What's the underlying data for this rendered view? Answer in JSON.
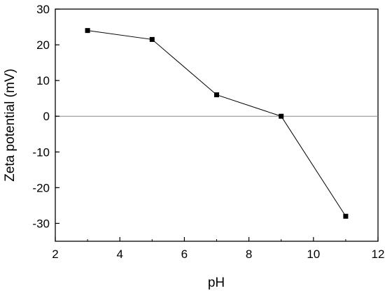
{
  "chart_data": {
    "type": "line",
    "title": "",
    "xlabel": "pH",
    "ylabel": "Zeta potential (mV)",
    "xlim": [
      2,
      12
    ],
    "ylim": [
      -35,
      30
    ],
    "xticks": [
      2,
      4,
      6,
      8,
      10,
      12
    ],
    "yticks": [
      30,
      20,
      10,
      0,
      -10,
      -20,
      -30
    ],
    "xtick_labels": [
      "2",
      "4",
      "6",
      "8",
      "10",
      "12"
    ],
    "ytick_labels": [
      "30",
      "20",
      "10",
      "0",
      "-10",
      "-20",
      "-30"
    ],
    "grid": false,
    "reference_line_y": 0,
    "marker": "square",
    "series": [
      {
        "x": [
          3,
          5,
          7,
          9,
          11
        ],
        "y": [
          24,
          21.5,
          6,
          0,
          -28
        ]
      }
    ]
  }
}
